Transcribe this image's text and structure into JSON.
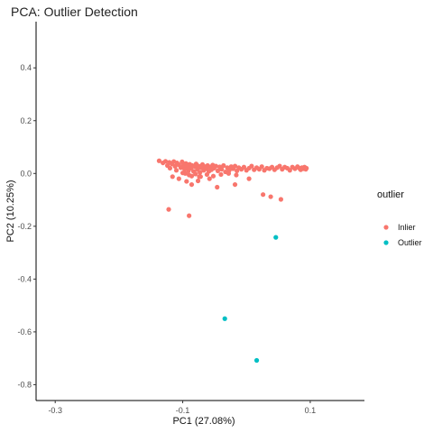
{
  "chart_data": {
    "type": "scatter",
    "title": "PCA: Outlier Detection",
    "xlabel": "PC1 (27.08%)",
    "ylabel": "PC2 (10.25%)",
    "xlim": [
      -0.33,
      0.185
    ],
    "ylim": [
      -0.86,
      0.575
    ],
    "x_ticks": [
      -0.3,
      -0.1,
      0.1
    ],
    "x_tick_labels": [
      "-0.3",
      "-0.1",
      "0.1"
    ],
    "y_ticks": [
      0.4,
      0.2,
      0.0,
      -0.2,
      -0.4,
      -0.6,
      -0.8
    ],
    "y_tick_labels": [
      "0.4",
      "0.2",
      "0.0",
      "-0.2",
      "-0.4",
      "-0.6",
      "-0.8"
    ],
    "grid": false,
    "legend": {
      "title": "outlier",
      "position": "right",
      "entries": [
        {
          "label": "Inlier",
          "color": "#F8766D"
        },
        {
          "label": "Outlier",
          "color": "#00BFC4"
        }
      ]
    },
    "series": [
      {
        "name": "Inlier",
        "color": "#F8766D",
        "points": [
          [
            -0.137,
            0.048
          ],
          [
            -0.131,
            0.04
          ],
          [
            -0.127,
            0.046
          ],
          [
            -0.124,
            0.03
          ],
          [
            -0.121,
            0.042
          ],
          [
            -0.117,
            0.036
          ],
          [
            -0.114,
            0.045
          ],
          [
            -0.112,
            0.027
          ],
          [
            -0.109,
            0.04
          ],
          [
            -0.106,
            0.033
          ],
          [
            -0.103,
            0.022
          ],
          [
            -0.101,
            0.044
          ],
          [
            -0.099,
            0.03
          ],
          [
            -0.097,
            0.016
          ],
          [
            -0.095,
            0.038
          ],
          [
            -0.093,
            0.024
          ],
          [
            -0.091,
            0.01
          ],
          [
            -0.089,
            0.035
          ],
          [
            -0.087,
            0.02
          ],
          [
            -0.085,
            0.03
          ],
          [
            -0.083,
            0.008
          ],
          [
            -0.081,
            0.026
          ],
          [
            -0.079,
            0.036
          ],
          [
            -0.077,
            0.015
          ],
          [
            -0.075,
            0.028
          ],
          [
            -0.073,
            0.004
          ],
          [
            -0.071,
            0.022
          ],
          [
            -0.069,
            0.034
          ],
          [
            -0.067,
            0.012
          ],
          [
            -0.065,
            0.026
          ],
          [
            -0.063,
            0.018
          ],
          [
            -0.061,
            0.03
          ],
          [
            -0.059,
            0.008
          ],
          [
            -0.057,
            0.024
          ],
          [
            -0.055,
            0.014
          ],
          [
            -0.053,
            0.032
          ],
          [
            -0.051,
            0.02
          ],
          [
            -0.048,
            0.028
          ],
          [
            -0.045,
            0.01
          ],
          [
            -0.042,
            0.025
          ],
          [
            -0.039,
            0.016
          ],
          [
            -0.036,
            0.03
          ],
          [
            -0.033,
            0.006
          ],
          [
            -0.03,
            0.022
          ],
          [
            -0.027,
            0.012
          ],
          [
            -0.024,
            0.026
          ],
          [
            -0.021,
            0.018
          ],
          [
            -0.018,
            0.028
          ],
          [
            -0.015,
            0.01
          ],
          [
            -0.012,
            0.022
          ],
          [
            -0.008,
            0.016
          ],
          [
            -0.004,
            0.024
          ],
          [
            0.0,
            0.012
          ],
          [
            0.004,
            0.02
          ],
          [
            0.008,
            0.028
          ],
          [
            0.012,
            0.014
          ],
          [
            0.016,
            0.022
          ],
          [
            0.02,
            0.016
          ],
          [
            0.024,
            0.026
          ],
          [
            0.028,
            0.012
          ],
          [
            0.032,
            0.02
          ],
          [
            0.036,
            0.018
          ],
          [
            0.04,
            0.024
          ],
          [
            0.044,
            0.014
          ],
          [
            0.048,
            0.022
          ],
          [
            0.052,
            0.028
          ],
          [
            0.056,
            0.016
          ],
          [
            0.06,
            0.024
          ],
          [
            0.064,
            0.02
          ],
          [
            0.068,
            0.012
          ],
          [
            0.072,
            0.024
          ],
          [
            0.076,
            0.018
          ],
          [
            0.08,
            0.026
          ],
          [
            0.083,
            0.02
          ],
          [
            0.085,
            0.014
          ],
          [
            0.087,
            0.022
          ],
          [
            0.089,
            0.018
          ],
          [
            0.091,
            0.024
          ],
          [
            0.093,
            0.016
          ],
          [
            0.094,
            0.02
          ],
          [
            -0.12,
            0.02
          ],
          [
            -0.11,
            0.012
          ],
          [
            -0.1,
            0.002
          ],
          [
            -0.09,
            -0.006
          ],
          [
            -0.096,
            0.0
          ],
          [
            -0.086,
            -0.01
          ],
          [
            -0.08,
            -0.002
          ],
          [
            -0.072,
            -0.012
          ],
          [
            -0.062,
            -0.004
          ],
          [
            -0.052,
            -0.01
          ],
          [
            -0.04,
            -0.004
          ],
          [
            -0.028,
            0.0
          ],
          [
            -0.016,
            -0.006
          ],
          [
            -0.116,
            -0.012
          ],
          [
            -0.106,
            -0.02
          ],
          [
            -0.094,
            -0.03
          ],
          [
            -0.086,
            -0.042
          ],
          [
            -0.076,
            -0.028
          ],
          [
            -0.058,
            -0.02
          ],
          [
            -0.046,
            -0.052
          ],
          [
            -0.018,
            -0.042
          ],
          [
            0.004,
            -0.02
          ],
          [
            0.026,
            -0.08
          ],
          [
            0.038,
            -0.088
          ],
          [
            0.054,
            -0.098
          ],
          [
            -0.122,
            -0.136
          ],
          [
            -0.09,
            -0.16
          ],
          [
            -0.074,
            -0.012
          ]
        ]
      },
      {
        "name": "Outlier",
        "color": "#00BFC4",
        "points": [
          [
            0.046,
            -0.242
          ],
          [
            -0.034,
            -0.55
          ],
          [
            0.016,
            -0.708
          ]
        ]
      }
    ]
  }
}
